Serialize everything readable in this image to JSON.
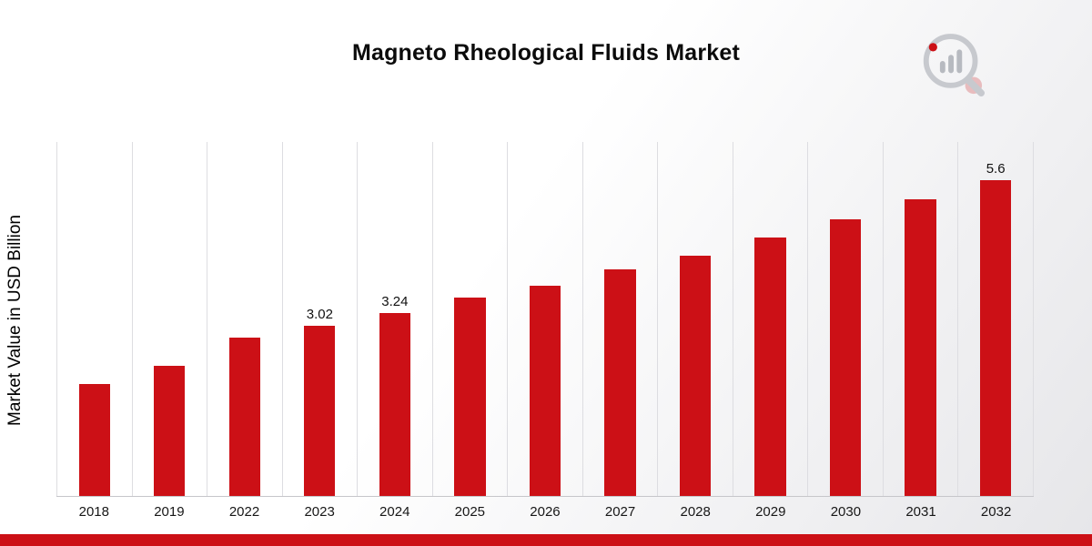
{
  "page": {
    "title": "Magneto Rheological Fluids Market"
  },
  "branding": {
    "logo_name": "market-research-chart-magnifier-logo",
    "accent_color": "#cc1016"
  },
  "chart_data": {
    "type": "bar",
    "title": "Magneto Rheological Fluids Market",
    "xlabel": "",
    "ylabel": "Market Value in USD Billion",
    "categories": [
      "2018",
      "2019",
      "2022",
      "2023",
      "2024",
      "2025",
      "2026",
      "2027",
      "2028",
      "2029",
      "2030",
      "2031",
      "2032"
    ],
    "values": [
      1.98,
      2.3,
      2.81,
      3.02,
      3.24,
      3.52,
      3.73,
      4.02,
      4.26,
      4.58,
      4.9,
      5.25,
      5.6
    ],
    "data_labels_shown": {
      "2023": "3.02",
      "2024": "3.24",
      "2032": "5.6"
    },
    "points": [
      {
        "year": "2018",
        "value": 1.98,
        "label": ""
      },
      {
        "year": "2019",
        "value": 2.3,
        "label": ""
      },
      {
        "year": "2022",
        "value": 2.81,
        "label": ""
      },
      {
        "year": "2023",
        "value": 3.02,
        "label": "3.02"
      },
      {
        "year": "2024",
        "value": 3.24,
        "label": "3.24"
      },
      {
        "year": "2025",
        "value": 3.52,
        "label": ""
      },
      {
        "year": "2026",
        "value": 3.73,
        "label": ""
      },
      {
        "year": "2027",
        "value": 4.02,
        "label": ""
      },
      {
        "year": "2028",
        "value": 4.26,
        "label": ""
      },
      {
        "year": "2029",
        "value": 4.58,
        "label": ""
      },
      {
        "year": "2030",
        "value": 4.9,
        "label": ""
      },
      {
        "year": "2031",
        "value": 5.25,
        "label": ""
      },
      {
        "year": "2032",
        "value": 5.6,
        "label": "5.6"
      }
    ],
    "bar_color": "#cc1016",
    "ylim": [
      0,
      6.2
    ],
    "grid": "vertical-only",
    "legend": "none"
  }
}
